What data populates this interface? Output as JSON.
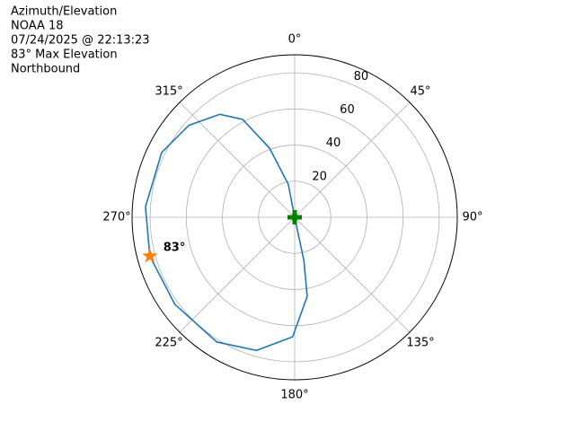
{
  "chart_data": {
    "type": "polar",
    "title_lines": [
      "Azimuth/Elevation",
      "NOAA 18",
      "07/24/2025 @ 22:13:23",
      "83° Max Elevation",
      "Northbound"
    ],
    "theta_ticks": [
      {
        "value": 0,
        "label": "0°"
      },
      {
        "value": 45,
        "label": "45°"
      },
      {
        "value": 90,
        "label": "90°"
      },
      {
        "value": 135,
        "label": "135°"
      },
      {
        "value": 180,
        "label": "180°"
      },
      {
        "value": 225,
        "label": "225°"
      },
      {
        "value": 270,
        "label": "270°"
      },
      {
        "value": 315,
        "label": "315°"
      }
    ],
    "rlim": [
      0,
      90
    ],
    "rticks": [
      20,
      40,
      60,
      80
    ],
    "grid": true,
    "series": [
      {
        "color": "#1f77b4",
        "theta": [
          0,
          349,
          340,
          332,
          324,
          311,
          296,
          274,
          255,
          234,
          212,
          196,
          181,
          171,
          168,
          180
        ],
        "r": [
          0,
          18.7,
          40.8,
          61.4,
          70.5,
          77.6,
          81.9,
          82.8,
          83,
          82,
          81.4,
          76.7,
          66.2,
          44.3,
          24.4,
          0
        ]
      }
    ],
    "start_point": {
      "theta": 0,
      "r": 0,
      "color": "#008000"
    },
    "max_point": {
      "theta": 255,
      "r": 83,
      "label": "83°",
      "color": "#ff7f0e"
    }
  }
}
